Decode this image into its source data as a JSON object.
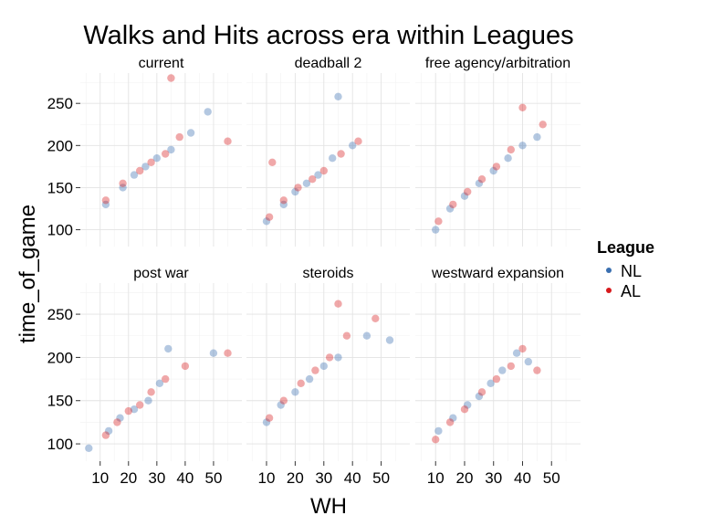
{
  "chart_data": {
    "type": "scatter",
    "title": "Walks and Hits across era within Leagues",
    "xlabel": "WH",
    "ylabel": "time_of_game",
    "xlim": [
      3,
      60
    ],
    "ylim": [
      80,
      286
    ],
    "xticks": [
      10,
      20,
      30,
      40,
      50
    ],
    "yticks": [
      100,
      150,
      200,
      250
    ],
    "grid": true,
    "legend": {
      "title": "League",
      "position": "right",
      "entries": [
        {
          "name": "NL",
          "color": "#3a6fb0"
        },
        {
          "name": "AL",
          "color": "#d7191c"
        }
      ]
    },
    "series": [
      {
        "name": "NL",
        "color": "#3a6fb0"
      },
      {
        "name": "AL",
        "color": "#d7191c"
      }
    ],
    "panels": [
      {
        "label": "current",
        "approx_points": [
          {
            "series": "NL",
            "x": 12,
            "y": 130
          },
          {
            "series": "NL",
            "x": 18,
            "y": 150
          },
          {
            "series": "NL",
            "x": 22,
            "y": 165
          },
          {
            "series": "NL",
            "x": 26,
            "y": 175
          },
          {
            "series": "NL",
            "x": 30,
            "y": 185
          },
          {
            "series": "NL",
            "x": 35,
            "y": 195
          },
          {
            "series": "NL",
            "x": 42,
            "y": 215
          },
          {
            "series": "NL",
            "x": 48,
            "y": 240
          },
          {
            "series": "AL",
            "x": 12,
            "y": 135
          },
          {
            "series": "AL",
            "x": 18,
            "y": 155
          },
          {
            "series": "AL",
            "x": 24,
            "y": 170
          },
          {
            "series": "AL",
            "x": 28,
            "y": 180
          },
          {
            "series": "AL",
            "x": 33,
            "y": 190
          },
          {
            "series": "AL",
            "x": 38,
            "y": 210
          },
          {
            "series": "AL",
            "x": 35,
            "y": 280
          },
          {
            "series": "AL",
            "x": 55,
            "y": 205
          }
        ]
      },
      {
        "label": "deadball 2",
        "approx_points": [
          {
            "series": "NL",
            "x": 10,
            "y": 110
          },
          {
            "series": "NL",
            "x": 16,
            "y": 130
          },
          {
            "series": "NL",
            "x": 20,
            "y": 145
          },
          {
            "series": "NL",
            "x": 24,
            "y": 155
          },
          {
            "series": "NL",
            "x": 28,
            "y": 165
          },
          {
            "series": "NL",
            "x": 33,
            "y": 185
          },
          {
            "series": "NL",
            "x": 35,
            "y": 258
          },
          {
            "series": "NL",
            "x": 40,
            "y": 200
          },
          {
            "series": "AL",
            "x": 11,
            "y": 115
          },
          {
            "series": "AL",
            "x": 16,
            "y": 135
          },
          {
            "series": "AL",
            "x": 21,
            "y": 150
          },
          {
            "series": "AL",
            "x": 26,
            "y": 160
          },
          {
            "series": "AL",
            "x": 30,
            "y": 170
          },
          {
            "series": "AL",
            "x": 36,
            "y": 190
          },
          {
            "series": "AL",
            "x": 12,
            "y": 180
          },
          {
            "series": "AL",
            "x": 42,
            "y": 205
          }
        ]
      },
      {
        "label": "free agency/arbitration",
        "approx_points": [
          {
            "series": "NL",
            "x": 10,
            "y": 100
          },
          {
            "series": "NL",
            "x": 15,
            "y": 125
          },
          {
            "series": "NL",
            "x": 20,
            "y": 140
          },
          {
            "series": "NL",
            "x": 25,
            "y": 155
          },
          {
            "series": "NL",
            "x": 30,
            "y": 170
          },
          {
            "series": "NL",
            "x": 35,
            "y": 185
          },
          {
            "series": "NL",
            "x": 40,
            "y": 200
          },
          {
            "series": "NL",
            "x": 45,
            "y": 210
          },
          {
            "series": "AL",
            "x": 11,
            "y": 110
          },
          {
            "series": "AL",
            "x": 16,
            "y": 130
          },
          {
            "series": "AL",
            "x": 21,
            "y": 145
          },
          {
            "series": "AL",
            "x": 26,
            "y": 160
          },
          {
            "series": "AL",
            "x": 31,
            "y": 175
          },
          {
            "series": "AL",
            "x": 36,
            "y": 195
          },
          {
            "series": "AL",
            "x": 40,
            "y": 245
          },
          {
            "series": "AL",
            "x": 47,
            "y": 225
          }
        ]
      },
      {
        "label": "post war",
        "approx_points": [
          {
            "series": "NL",
            "x": 6,
            "y": 95
          },
          {
            "series": "NL",
            "x": 13,
            "y": 115
          },
          {
            "series": "NL",
            "x": 17,
            "y": 130
          },
          {
            "series": "NL",
            "x": 22,
            "y": 140
          },
          {
            "series": "NL",
            "x": 27,
            "y": 150
          },
          {
            "series": "NL",
            "x": 31,
            "y": 170
          },
          {
            "series": "NL",
            "x": 34,
            "y": 210
          },
          {
            "series": "NL",
            "x": 50,
            "y": 205
          },
          {
            "series": "AL",
            "x": 12,
            "y": 110
          },
          {
            "series": "AL",
            "x": 16,
            "y": 125
          },
          {
            "series": "AL",
            "x": 20,
            "y": 138
          },
          {
            "series": "AL",
            "x": 24,
            "y": 145
          },
          {
            "series": "AL",
            "x": 28,
            "y": 160
          },
          {
            "series": "AL",
            "x": 33,
            "y": 175
          },
          {
            "series": "AL",
            "x": 40,
            "y": 190
          },
          {
            "series": "AL",
            "x": 55,
            "y": 205
          }
        ]
      },
      {
        "label": "steroids",
        "approx_points": [
          {
            "series": "NL",
            "x": 10,
            "y": 125
          },
          {
            "series": "NL",
            "x": 15,
            "y": 145
          },
          {
            "series": "NL",
            "x": 20,
            "y": 160
          },
          {
            "series": "NL",
            "x": 25,
            "y": 175
          },
          {
            "series": "NL",
            "x": 30,
            "y": 190
          },
          {
            "series": "NL",
            "x": 35,
            "y": 200
          },
          {
            "series": "NL",
            "x": 45,
            "y": 225
          },
          {
            "series": "NL",
            "x": 53,
            "y": 220
          },
          {
            "series": "AL",
            "x": 11,
            "y": 130
          },
          {
            "series": "AL",
            "x": 16,
            "y": 150
          },
          {
            "series": "AL",
            "x": 22,
            "y": 170
          },
          {
            "series": "AL",
            "x": 27,
            "y": 185
          },
          {
            "series": "AL",
            "x": 32,
            "y": 200
          },
          {
            "series": "AL",
            "x": 38,
            "y": 225
          },
          {
            "series": "AL",
            "x": 35,
            "y": 262
          },
          {
            "series": "AL",
            "x": 48,
            "y": 245
          }
        ]
      },
      {
        "label": "westward expansion",
        "approx_points": [
          {
            "series": "NL",
            "x": 11,
            "y": 115
          },
          {
            "series": "NL",
            "x": 16,
            "y": 130
          },
          {
            "series": "NL",
            "x": 21,
            "y": 145
          },
          {
            "series": "NL",
            "x": 25,
            "y": 155
          },
          {
            "series": "NL",
            "x": 29,
            "y": 170
          },
          {
            "series": "NL",
            "x": 33,
            "y": 185
          },
          {
            "series": "NL",
            "x": 38,
            "y": 205
          },
          {
            "series": "NL",
            "x": 42,
            "y": 195
          },
          {
            "series": "AL",
            "x": 10,
            "y": 105
          },
          {
            "series": "AL",
            "x": 15,
            "y": 125
          },
          {
            "series": "AL",
            "x": 20,
            "y": 140
          },
          {
            "series": "AL",
            "x": 26,
            "y": 160
          },
          {
            "series": "AL",
            "x": 31,
            "y": 175
          },
          {
            "series": "AL",
            "x": 36,
            "y": 190
          },
          {
            "series": "AL",
            "x": 40,
            "y": 210
          },
          {
            "series": "AL",
            "x": 45,
            "y": 185
          }
        ]
      }
    ]
  }
}
